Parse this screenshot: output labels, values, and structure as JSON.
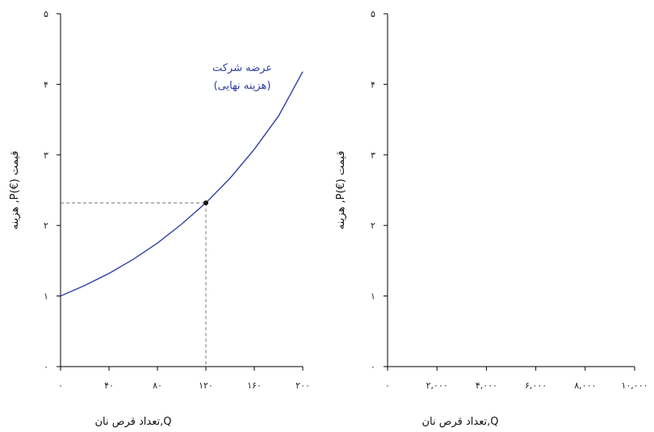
{
  "chart_data": [
    {
      "type": "line",
      "xlabel": "تعداد قرص نان,Q",
      "ylabel": "هزینه ,P(€) قیمت",
      "xlim": [
        0,
        200
      ],
      "ylim": [
        0,
        5
      ],
      "xticks": [
        0,
        40,
        80,
        120,
        160,
        200
      ],
      "xtick_labels": [
        "۰",
        "۴۰",
        "۸۰",
        "۱۲۰",
        "۱۶۰",
        "۲۰۰"
      ],
      "yticks": [
        0,
        1,
        2,
        3,
        4,
        5
      ],
      "ytick_labels": [
        "۰",
        "۱",
        "۲",
        "۳",
        "۴",
        "۵"
      ],
      "grid": false,
      "series": [
        {
          "label_lines": [
            "عرضه شرکت",
            "(هزینه نهایی)"
          ],
          "color": "#2f3fa3",
          "x": [
            0,
            20,
            40,
            60,
            80,
            100,
            120,
            140,
            160,
            180,
            200
          ],
          "y": [
            1.0,
            1.15,
            1.32,
            1.52,
            1.75,
            2.02,
            2.32,
            2.67,
            3.08,
            3.55,
            4.18
          ]
        }
      ],
      "highlight_point": {
        "x": 120,
        "y": 2.32
      }
    },
    {
      "type": "line",
      "xlabel": "تعداد قرص نان,Q",
      "ylabel": "هزینه ,P(€) قیمت",
      "xlim": [
        0,
        10000
      ],
      "ylim": [
        0,
        5
      ],
      "xticks": [
        0,
        2000,
        4000,
        6000,
        8000,
        10000
      ],
      "xtick_labels": [
        "۰",
        "۲,۰۰۰",
        "۴,۰۰۰",
        "۶,۰۰۰",
        "۸,۰۰۰",
        "۱۰,۰۰۰"
      ],
      "yticks": [
        0,
        1,
        2,
        3,
        4,
        5
      ],
      "ytick_labels": [
        "۰",
        "۱",
        "۲",
        "۳",
        "۴",
        "۵"
      ],
      "grid": false,
      "series": []
    }
  ]
}
